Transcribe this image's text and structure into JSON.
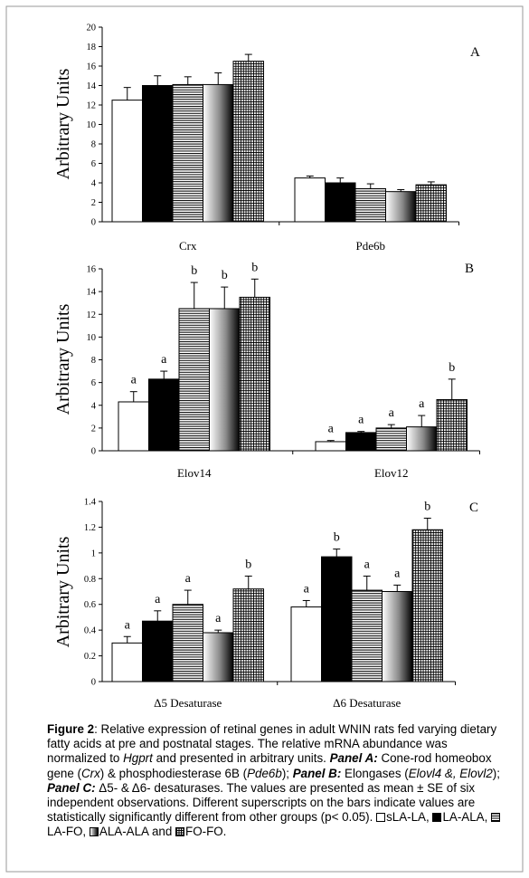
{
  "chart_data": [
    {
      "type": "bar",
      "panel_label": "A",
      "ylabel": "Arbitrary Units",
      "ylim": [
        0,
        20
      ],
      "yticks": [
        "0",
        "2",
        "4",
        "6",
        "8",
        "10",
        "12",
        "14",
        "16",
        "18",
        "20"
      ],
      "categories": [
        "Crx",
        "Pde6b"
      ],
      "series": [
        {
          "pattern": "white",
          "values": [
            12.5,
            4.5
          ],
          "errors": [
            1.3,
            0.2
          ],
          "letters": [
            "",
            ""
          ]
        },
        {
          "pattern": "black",
          "values": [
            14.0,
            4.0
          ],
          "errors": [
            1.0,
            0.5
          ],
          "letters": [
            "",
            ""
          ]
        },
        {
          "pattern": "hlines",
          "values": [
            14.1,
            3.4
          ],
          "errors": [
            0.8,
            0.5
          ],
          "letters": [
            "",
            ""
          ]
        },
        {
          "pattern": "gradient",
          "values": [
            14.1,
            3.1
          ],
          "errors": [
            1.2,
            0.2
          ],
          "letters": [
            "",
            ""
          ]
        },
        {
          "pattern": "grid",
          "values": [
            16.5,
            3.8
          ],
          "errors": [
            0.7,
            0.3
          ],
          "letters": [
            "",
            ""
          ]
        }
      ]
    },
    {
      "type": "bar",
      "panel_label": "B",
      "ylabel": "Arbitrary Units",
      "ylim": [
        0,
        16
      ],
      "yticks": [
        "0",
        "2",
        "4",
        "6",
        "8",
        "10",
        "12",
        "14",
        "16"
      ],
      "categories": [
        "Elov14",
        "Elov12"
      ],
      "series": [
        {
          "pattern": "white",
          "values": [
            4.3,
            0.8
          ],
          "errors": [
            0.9,
            0.1
          ],
          "letters": [
            "a",
            "a"
          ]
        },
        {
          "pattern": "black",
          "values": [
            6.3,
            1.6
          ],
          "errors": [
            0.7,
            0.1
          ],
          "letters": [
            "a",
            "a"
          ]
        },
        {
          "pattern": "hlines",
          "values": [
            12.5,
            2.0
          ],
          "errors": [
            2.3,
            0.3
          ],
          "letters": [
            "b",
            "a"
          ]
        },
        {
          "pattern": "gradient",
          "values": [
            12.5,
            2.1
          ],
          "errors": [
            1.9,
            1.0
          ],
          "letters": [
            "b",
            "a"
          ]
        },
        {
          "pattern": "grid",
          "values": [
            13.5,
            4.5
          ],
          "errors": [
            1.6,
            1.8
          ],
          "letters": [
            "b",
            "b"
          ]
        }
      ]
    },
    {
      "type": "bar",
      "panel_label": "C",
      "ylabel": "Arbitrary Units",
      "ylim": [
        0,
        1.4
      ],
      "yticks": [
        "0",
        "0.2",
        "0.4",
        "0.6",
        "0.8",
        "1",
        "1.2",
        "1.4"
      ],
      "categories": [
        "Δ5 Desaturase",
        "Δ6 Desaturase"
      ],
      "series": [
        {
          "pattern": "white",
          "values": [
            0.3,
            0.58
          ],
          "errors": [
            0.05,
            0.05
          ],
          "letters": [
            "a",
            "a"
          ]
        },
        {
          "pattern": "black",
          "values": [
            0.47,
            0.97
          ],
          "errors": [
            0.08,
            0.06
          ],
          "letters": [
            "a",
            "b"
          ]
        },
        {
          "pattern": "hlines",
          "values": [
            0.6,
            0.71
          ],
          "errors": [
            0.11,
            0.11
          ],
          "letters": [
            "a",
            "a"
          ]
        },
        {
          "pattern": "gradient",
          "values": [
            0.38,
            0.7
          ],
          "errors": [
            0.02,
            0.05
          ],
          "letters": [
            "a",
            "a"
          ]
        },
        {
          "pattern": "grid",
          "values": [
            0.72,
            1.18
          ],
          "errors": [
            0.1,
            0.09
          ],
          "letters": [
            "b",
            "b"
          ]
        }
      ]
    }
  ],
  "caption": {
    "label": "Figure 2",
    "t1": ": Relative expression of retinal genes in adult WNIN rats fed varying dietary fatty acids at pre and postnatal stages. The relative mRNA abundance was normalized to ",
    "i1": "Hgprt",
    "t2": " and presented in arbitrary units. ",
    "panelA": "Panel A:",
    "t3": " Cone-rod homeobox gene (",
    "i2": "Crx",
    "t4": ") & phosphodiesterase 6B (",
    "i3": "Pde6b",
    "t5": "); ",
    "panelB": "Panel B:",
    "t6": " Elongases (",
    "i4": "Elovl4 &, Elovl2",
    "t7": "); ",
    "panelC": "Panel C:",
    "t8": " Δ5- & Δ6- desaturases. The values are presented as mean ± SE of six independent observations. Different superscripts on the bars indicate values are statistically significantly different from other groups (p< 0.05). ",
    "legend": [
      "sLA-LA,",
      "LA-ALA,",
      "LA-FO,",
      "ALA-ALA and",
      "FO-FO."
    ]
  }
}
